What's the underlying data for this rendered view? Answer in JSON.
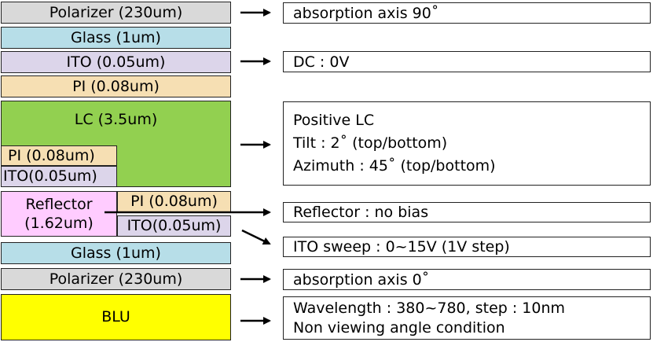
{
  "layers": {
    "polarizer_top": "Polarizer (230um)",
    "glass_top": "Glass (1um)",
    "ito_top": "ITO (0.05um)",
    "pi_top": "PI (0.08um)",
    "lc": "LC (3.5um)",
    "pi_inner": "PI (0.08um)",
    "ito_inner": "ITO(0.05um)",
    "reflector_line1": "Reflector",
    "reflector_line2": "(1.62um)",
    "pi_lower": "PI (0.08um)",
    "ito_lower": "ITO(0.05um)",
    "glass_bottom": "Glass (1um)",
    "polarizer_bottom": "Polarizer (230um)",
    "blu": "BLU"
  },
  "notes": {
    "polarizer_top": "absorption axis 90˚",
    "ito_top": "DC : 0V",
    "lc_line1": "Positive LC",
    "lc_line2": "Tilt : 2˚ (top/bottom)",
    "lc_line3": "Azimuth : 45˚ (top/bottom)",
    "reflector": "Reflector : no bias",
    "ito_sweep": "ITO sweep : 0~15V (1V step)",
    "polarizer_bottom": "absorption axis 0˚",
    "blu_line1": "Wavelength : 380~780, step : 10nm",
    "blu_line2": "Non viewing angle condition"
  },
  "colors": {
    "polarizer": "#d9d9d9",
    "glass": "#b7dee8",
    "ito": "#dcd5ea",
    "pi": "#f6dfb3",
    "lc": "#92d050",
    "reflector": "#ffccff",
    "blu": "#ffff00"
  }
}
